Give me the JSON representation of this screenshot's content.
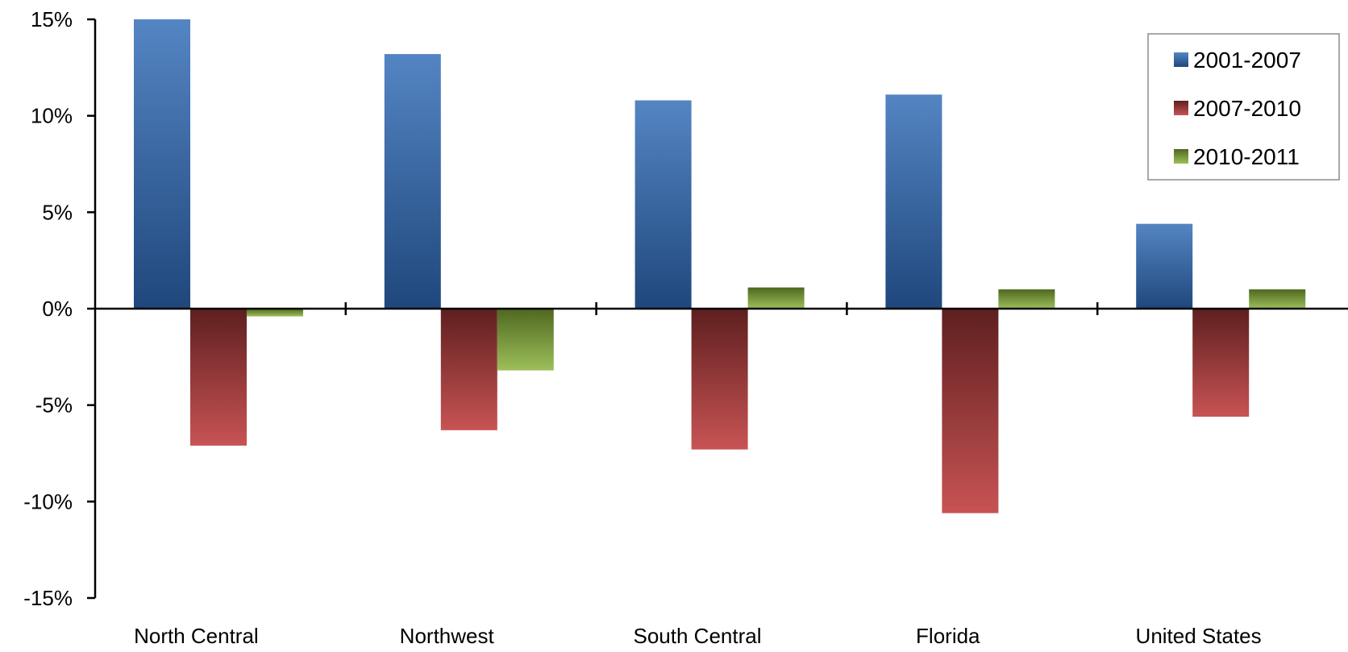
{
  "chart_data": {
    "type": "bar",
    "categories": [
      "North Central",
      "Northwest",
      "South Central",
      "Florida",
      "United States"
    ],
    "series": [
      {
        "name": "2001-2007",
        "values": [
          15.0,
          13.2,
          10.8,
          11.1,
          4.4
        ],
        "color_top": "#5485c3",
        "color_bottom": "#1f477c"
      },
      {
        "name": "2007-2010",
        "values": [
          -7.1,
          -6.3,
          -7.3,
          -10.6,
          -5.6
        ],
        "color_top": "#5e1f1f",
        "color_bottom": "#c85354"
      },
      {
        "name": "2010-2011",
        "values": [
          -0.4,
          -3.2,
          1.1,
          1.0,
          1.0
        ],
        "color_top": "#4f6820",
        "color_bottom": "#9dbf5a"
      }
    ],
    "y_ticks": [
      15,
      10,
      5,
      0,
      -5,
      -10,
      -15
    ],
    "y_tick_labels": [
      "15%",
      "10%",
      "5%",
      "0%",
      "-5%",
      "-10%",
      "-15%"
    ],
    "ylim": [
      -15,
      15
    ],
    "grid": false,
    "legend_position": "top-right",
    "title": "",
    "xlabel": "",
    "ylabel": ""
  }
}
